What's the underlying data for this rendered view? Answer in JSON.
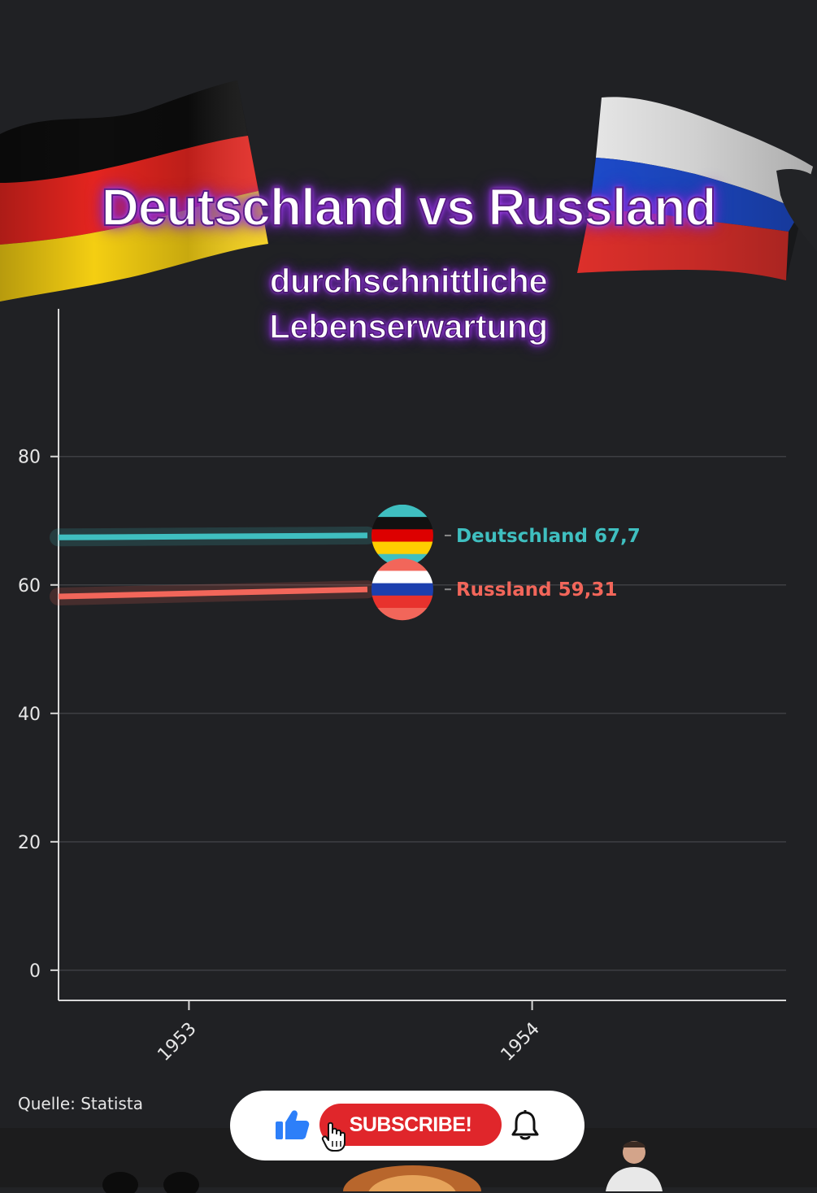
{
  "title": "Deutschland vs Russland",
  "subtitle_lines": [
    "durchschnittliche",
    "Lebenserwartung"
  ],
  "source": "Quelle: Statista",
  "subscribe": {
    "label": "SUBSCRIBE!"
  },
  "icons": [
    "flag-germany-icon",
    "flag-russia-icon",
    "like-icon",
    "bell-icon",
    "cursor-icon"
  ],
  "colors": {
    "background": "#202124",
    "deutschland": "#3fbfc0",
    "russland": "#f2665a",
    "title_glow": "#b44dff",
    "subscribe_red": "#e0262b"
  },
  "chart_data": {
    "type": "line",
    "title": "Deutschland vs Russland",
    "subtitle": "durchschnittliche Lebenserwartung",
    "xlabel": "",
    "ylabel": "",
    "x_ticks": [
      "1953",
      "1954"
    ],
    "y_ticks": [
      0,
      20,
      40,
      60,
      80
    ],
    "xlim": [
      1952.62,
      1954.74
    ],
    "ylim": [
      -4.7,
      103
    ],
    "grid": true,
    "series": [
      {
        "name": "Deutschland",
        "color": "#3fbfc0",
        "flag": "flag-germany-icon",
        "x": [
          1952.62,
          1953.52
        ],
        "values": [
          67.4,
          67.7
        ],
        "label": "Deutschland 67,7"
      },
      {
        "name": "Russland",
        "color": "#f2665a",
        "flag": "flag-russia-icon",
        "x": [
          1952.62,
          1953.52
        ],
        "values": [
          58.2,
          59.31
        ],
        "label": "Russland 59,31"
      }
    ]
  }
}
